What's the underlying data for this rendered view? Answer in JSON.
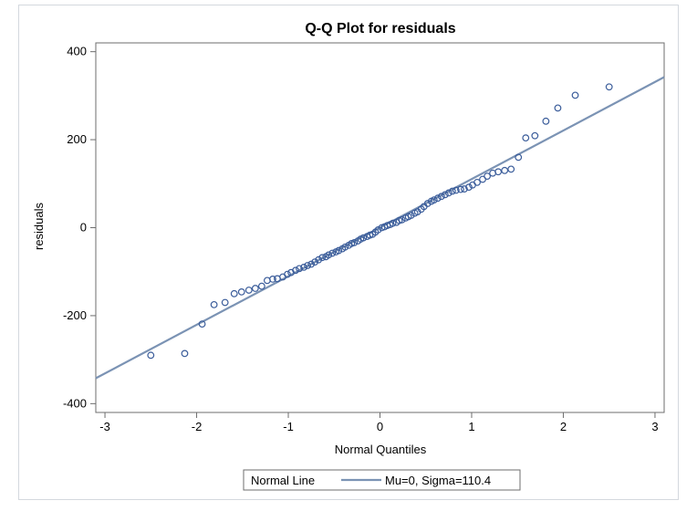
{
  "chart_data": {
    "type": "scatter",
    "title": "Q-Q Plot for residuals",
    "xlabel": "Normal Quantiles",
    "ylabel": "residuals",
    "xlim": [
      -3.1,
      3.1
    ],
    "ylim": [
      -420,
      420
    ],
    "xticks": [
      -3,
      -2,
      -1,
      0,
      1,
      2,
      3
    ],
    "xtick_labels": [
      "-3",
      "-2",
      "-1",
      "0",
      "1",
      "2",
      "3"
    ],
    "yticks": [
      -400,
      -200,
      0,
      200,
      400
    ],
    "ytick_labels": [
      "-400",
      "-200",
      "0",
      "200",
      "400"
    ],
    "grid": false,
    "legend_position": "bottom",
    "colors": {
      "line": "#7b93b4",
      "marker": "#3a5c9a",
      "frame": "#d4d8de",
      "axis": "#6d6d6d"
    },
    "normal_line": {
      "mu": 0,
      "sigma": 110.4,
      "legend_title": "Normal Line",
      "legend_label": "Mu=0, Sigma=110.4"
    },
    "series": [
      {
        "marker": "circle",
        "x": [
          -2.5,
          -2.13,
          -1.94,
          -1.81,
          -1.69,
          -1.59,
          -1.51,
          -1.43,
          -1.36,
          -1.29,
          -1.23,
          -1.17,
          -1.12,
          -1.06,
          -1.01,
          -0.97,
          -0.92,
          -0.88,
          -0.83,
          -0.79,
          -0.75,
          -0.71,
          -0.67,
          -0.63,
          -0.59,
          -0.56,
          -0.52,
          -0.48,
          -0.45,
          -0.41,
          -0.38,
          -0.34,
          -0.31,
          -0.28,
          -0.24,
          -0.21,
          -0.18,
          -0.14,
          -0.11,
          -0.08,
          -0.05,
          -0.02,
          0.02,
          0.05,
          0.08,
          0.11,
          0.14,
          0.18,
          0.21,
          0.24,
          0.28,
          0.31,
          0.34,
          0.38,
          0.41,
          0.45,
          0.48,
          0.52,
          0.56,
          0.59,
          0.63,
          0.67,
          0.71,
          0.75,
          0.79,
          0.83,
          0.88,
          0.92,
          0.97,
          1.01,
          1.06,
          1.12,
          1.17,
          1.23,
          1.29,
          1.36,
          1.43,
          1.51,
          1.59,
          1.69,
          1.81,
          1.94,
          2.13,
          2.5
        ],
        "y": [
          -290,
          -286,
          -219,
          -175,
          -170,
          -150,
          -146,
          -142,
          -138,
          -133,
          -120,
          -117,
          -116,
          -112,
          -106,
          -102,
          -97,
          -93,
          -90,
          -86,
          -83,
          -78,
          -73,
          -68,
          -66,
          -62,
          -58,
          -55,
          -52,
          -48,
          -44,
          -40,
          -36,
          -34,
          -30,
          -26,
          -23,
          -20,
          -17,
          -15,
          -10,
          -5,
          0,
          2,
          5,
          7,
          10,
          12,
          16,
          18,
          22,
          25,
          28,
          33,
          36,
          42,
          48,
          55,
          60,
          63,
          67,
          71,
          75,
          79,
          83,
          85,
          87,
          88,
          92,
          97,
          103,
          110,
          117,
          124,
          127,
          130,
          133,
          160,
          204,
          209,
          242,
          272,
          301,
          320
        ]
      }
    ]
  }
}
